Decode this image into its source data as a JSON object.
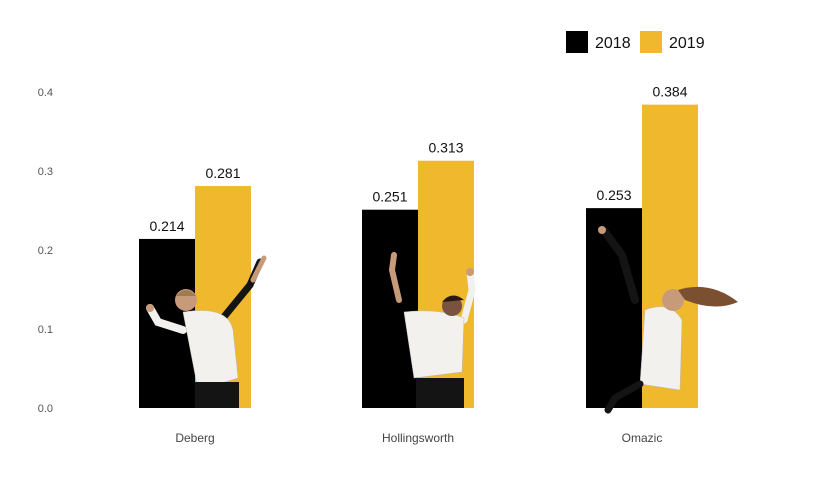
{
  "chart_data": {
    "type": "bar",
    "title": "",
    "xlabel": "",
    "ylabel": "",
    "categories": [
      "Deberg",
      "Hollingsworth",
      "Omazic"
    ],
    "series": [
      {
        "name": "2018",
        "color": "#000000",
        "values": [
          0.214,
          0.251,
          0.253
        ]
      },
      {
        "name": "2019",
        "color": "#F0B92D",
        "values": [
          0.281,
          0.313,
          0.384
        ]
      }
    ],
    "value_labels": [
      [
        "0.214",
        "0.251",
        "0.253"
      ],
      [
        "0.281",
        "0.313",
        "0.384"
      ]
    ],
    "ylim": [
      0,
      0.4
    ],
    "yticks": [
      "0.0",
      "0.1",
      "0.2",
      "0.3",
      "0.4"
    ],
    "grid": false,
    "legend_position": "top-right",
    "player_photos": [
      "volleyball-player-icon",
      "volleyball-player-icon",
      "volleyball-player-icon"
    ]
  }
}
